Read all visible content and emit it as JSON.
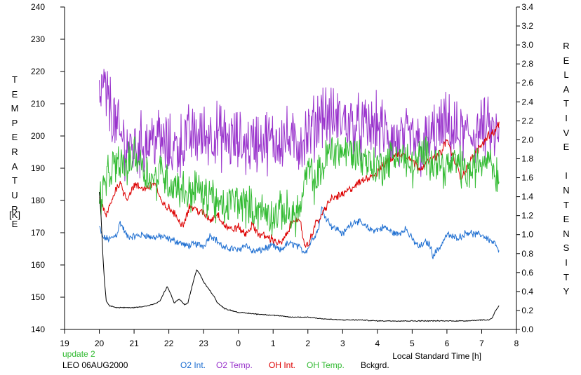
{
  "chart_data": {
    "type": "line",
    "footer": {
      "update": "update 2",
      "site": "LEO 06AUG2000"
    },
    "xlabel": "Local Standard Time [h]",
    "x_ticks": [
      "19",
      "20",
      "21",
      "22",
      "23",
      "0",
      "1",
      "2",
      "3",
      "4",
      "5",
      "6",
      "7",
      "8"
    ],
    "xlim": [
      19,
      32
    ],
    "left_axis": {
      "label_letters": [
        "T",
        "E",
        "M",
        "P",
        "E",
        "R",
        "A",
        "T",
        "U",
        "R",
        "E"
      ],
      "unit": "[K]",
      "ylim": [
        140,
        240
      ],
      "ticks": [
        "140",
        "150",
        "160",
        "170",
        "180",
        "190",
        "200",
        "210",
        "220",
        "230",
        "240"
      ]
    },
    "right_axis": {
      "label_letters": [
        "R",
        "E",
        "L",
        "A",
        "T",
        "I",
        "V",
        "E",
        " ",
        "I",
        "N",
        "T",
        "E",
        "N",
        "S",
        "I",
        "T",
        "Y"
      ],
      "ylim": [
        0.0,
        3.4
      ],
      "ticks": [
        "0.0",
        "0.2",
        "0.4",
        "0.6",
        "0.8",
        "1.0",
        "1.2",
        "1.4",
        "1.6",
        "1.8",
        "2.0",
        "2.2",
        "2.4",
        "2.6",
        "2.8",
        "3.0",
        "3.2",
        "3.4"
      ]
    },
    "series": [
      {
        "name": "O2 Int.",
        "axis": "right",
        "color": "#1f6fd1",
        "noise": 0.03,
        "x": [
          20.0,
          20.1,
          20.3,
          20.5,
          20.6,
          20.8,
          21.0,
          21.3,
          21.5,
          21.8,
          22.0,
          22.3,
          22.5,
          22.8,
          23.0,
          23.2,
          23.4,
          23.6,
          23.8,
          24.0,
          24.2,
          24.4,
          24.6,
          24.8,
          25.0,
          25.2,
          25.4,
          25.6,
          25.8,
          25.9,
          26.0,
          26.1,
          26.3,
          26.4,
          26.5,
          26.7,
          26.9,
          27.0,
          27.2,
          27.4,
          27.6,
          27.8,
          28.0,
          28.2,
          28.4,
          28.6,
          28.8,
          29.0,
          29.2,
          29.4,
          29.5,
          29.6,
          29.8,
          30.0,
          30.2,
          30.4,
          30.6,
          30.8,
          31.0,
          31.2,
          31.4,
          31.5
        ],
        "y": [
          1.08,
          0.97,
          0.95,
          1.0,
          1.13,
          0.98,
          0.98,
          1.0,
          0.97,
          0.98,
          0.95,
          0.92,
          0.88,
          0.9,
          0.88,
          1.0,
          0.93,
          0.85,
          0.86,
          0.83,
          0.9,
          0.82,
          0.83,
          0.86,
          0.88,
          0.83,
          0.9,
          0.9,
          0.85,
          0.82,
          0.85,
          0.94,
          1.05,
          1.28,
          1.2,
          1.08,
          1.05,
          1.0,
          1.1,
          1.15,
          1.1,
          1.05,
          1.05,
          1.08,
          1.03,
          1.0,
          1.07,
          0.95,
          0.87,
          0.92,
          0.9,
          0.78,
          0.87,
          1.0,
          0.97,
          0.98,
          1.03,
          1.0,
          1.0,
          0.95,
          0.9,
          0.8
        ]
      },
      {
        "name": "O2 Temp.",
        "axis": "left",
        "color": "#9933cc",
        "noise": 8,
        "x": [
          20.0,
          20.1,
          20.3,
          20.5,
          20.7,
          21.0,
          21.3,
          21.6,
          22.0,
          22.3,
          22.6,
          23.0,
          23.3,
          23.6,
          24.0,
          24.3,
          24.6,
          25.0,
          25.3,
          25.6,
          26.0,
          26.2,
          26.4,
          26.6,
          27.0,
          27.3,
          27.6,
          28.0,
          28.3,
          28.6,
          29.0,
          29.3,
          29.6,
          30.0,
          30.3,
          30.6,
          31.0,
          31.3,
          31.5
        ],
        "y": [
          212,
          215,
          210,
          202,
          198,
          196,
          198,
          200,
          196,
          197,
          200,
          200,
          201,
          199,
          198,
          197,
          199,
          198,
          200,
          197,
          200,
          203,
          208,
          205,
          205,
          203,
          202,
          203,
          200,
          198,
          199,
          196,
          200,
          203,
          200,
          200,
          202,
          201,
          198
        ]
      },
      {
        "name": "OH Int.",
        "axis": "right",
        "color": "#dd0000",
        "noise": 0.035,
        "x": [
          20.0,
          20.1,
          20.2,
          20.3,
          20.5,
          20.6,
          20.7,
          20.8,
          21.0,
          21.3,
          21.6,
          21.8,
          22.0,
          22.2,
          22.4,
          22.6,
          23.0,
          23.2,
          23.4,
          23.6,
          23.8,
          24.0,
          24.2,
          24.4,
          24.6,
          24.8,
          25.0,
          25.2,
          25.4,
          25.6,
          25.8,
          25.9,
          26.0,
          26.2,
          26.4,
          26.6,
          26.8,
          27.0,
          27.3,
          27.5,
          27.7,
          28.0,
          28.2,
          28.4,
          28.6,
          28.8,
          29.0,
          29.2,
          29.4,
          29.6,
          29.8,
          30.0,
          30.2,
          30.4,
          30.6,
          30.8,
          31.0,
          31.2,
          31.4,
          31.5
        ],
        "y": [
          1.4,
          1.28,
          1.2,
          1.3,
          1.5,
          1.55,
          1.45,
          1.38,
          1.52,
          1.48,
          1.55,
          1.32,
          1.28,
          1.2,
          1.1,
          1.3,
          1.22,
          1.15,
          1.22,
          1.1,
          1.05,
          1.08,
          1.0,
          1.1,
          1.0,
          0.98,
          0.95,
          0.9,
          1.0,
          1.18,
          1.1,
          0.9,
          0.88,
          1.1,
          1.2,
          1.35,
          1.4,
          1.42,
          1.5,
          1.55,
          1.6,
          1.65,
          1.75,
          1.8,
          1.85,
          1.85,
          1.78,
          1.7,
          1.75,
          1.8,
          1.85,
          2.0,
          1.8,
          1.6,
          1.72,
          1.85,
          1.95,
          2.05,
          2.1,
          2.18
        ]
      },
      {
        "name": "OH Temp.",
        "axis": "left",
        "color": "#33bb33",
        "noise": 5,
        "x": [
          20.0,
          20.2,
          20.4,
          20.6,
          20.8,
          21.0,
          21.2,
          21.4,
          21.6,
          21.8,
          22.0,
          22.2,
          22.4,
          22.6,
          22.8,
          23.0,
          23.2,
          23.4,
          23.6,
          23.8,
          24.0,
          24.3,
          24.6,
          25.0,
          25.3,
          25.6,
          25.8,
          26.0,
          26.2,
          26.4,
          26.6,
          26.8,
          27.0,
          27.3,
          27.6,
          28.0,
          28.3,
          28.6,
          29.0,
          29.3,
          29.6,
          30.0,
          30.3,
          30.6,
          31.0,
          31.2,
          31.4,
          31.5
        ],
        "y": [
          180,
          186,
          190,
          192,
          190,
          195,
          192,
          188,
          186,
          190,
          185,
          185,
          183,
          182,
          185,
          180,
          183,
          178,
          177,
          180,
          180,
          178,
          177,
          175,
          177,
          175,
          178,
          190,
          185,
          190,
          195,
          196,
          195,
          195,
          193,
          190,
          192,
          195,
          190,
          194,
          193,
          190,
          192,
          188,
          192,
          195,
          188,
          190
        ]
      },
      {
        "name": "Bckgrd.",
        "axis": "right",
        "color": "#000000",
        "noise": 0.004,
        "x": [
          20.0,
          20.05,
          20.1,
          20.15,
          20.2,
          20.3,
          20.5,
          20.7,
          21.0,
          21.2,
          21.4,
          21.6,
          21.75,
          21.85,
          21.95,
          22.05,
          22.15,
          22.3,
          22.45,
          22.55,
          22.7,
          22.8,
          22.9,
          23.0,
          23.1,
          23.2,
          23.3,
          23.4,
          23.6,
          23.8,
          24.0,
          24.3,
          24.6,
          25.0,
          25.5,
          26.0,
          26.5,
          27.0,
          27.5,
          28.0,
          28.5,
          29.0,
          29.5,
          30.0,
          30.5,
          31.0,
          31.2,
          31.3,
          31.4,
          31.5
        ],
        "y": [
          1.45,
          1.2,
          0.8,
          0.5,
          0.3,
          0.25,
          0.23,
          0.23,
          0.23,
          0.24,
          0.25,
          0.27,
          0.3,
          0.38,
          0.45,
          0.38,
          0.28,
          0.32,
          0.26,
          0.28,
          0.5,
          0.63,
          0.58,
          0.5,
          0.45,
          0.4,
          0.35,
          0.28,
          0.22,
          0.2,
          0.18,
          0.17,
          0.16,
          0.15,
          0.13,
          0.13,
          0.11,
          0.1,
          0.1,
          0.09,
          0.09,
          0.09,
          0.09,
          0.09,
          0.09,
          0.1,
          0.1,
          0.12,
          0.2,
          0.25
        ]
      }
    ]
  }
}
